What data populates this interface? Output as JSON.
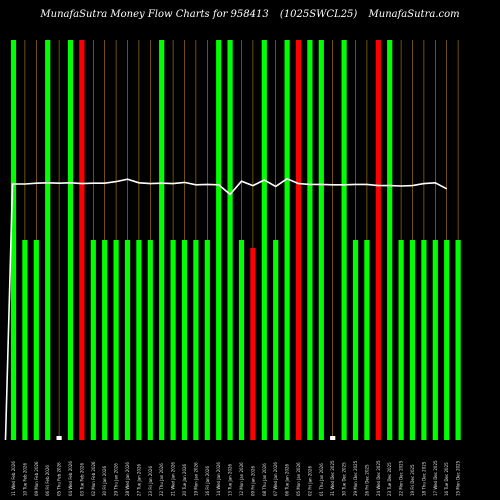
{
  "chart_data": {
    "type": "bar",
    "title": {
      "left": "MunafaSutra Money Flow  Charts for 958413",
      "middle": "(1025SWCL25)",
      "right": "MunafaSutra.com"
    },
    "colors": {
      "background": "#000000",
      "up_bar": "#00ff00",
      "up_bar_light": "#33ff33",
      "down_bar": "#ff0000",
      "neutral_bar": "#ffffff",
      "gridline": "#b8860b",
      "flow_line": "#ffffff"
    },
    "grid": true,
    "ylim": [
      0,
      100
    ],
    "categories": [
      "11 Wed Feb 2026",
      "10 Tue Feb 2026",
      "09 Mon Feb 2026",
      "06 Fri Feb 2026",
      "05 Thu Feb 2026",
      "04 Wed Feb 2026",
      "03 Tue Feb 2026",
      "02 Mon Feb 2026",
      "30 Fri Jan 2026",
      "29 Thu Jan 2026",
      "28 Wed Jan 2026",
      "27 Tue Jan 2026",
      "23 Fri Jan 2026",
      "22 Thu Jan 2026",
      "21 Wed Jan 2026",
      "20 Tue Jan 2026",
      "19 Mon Jan 2026",
      "16 Fri Jan 2026",
      "14 Wed Jan 2026",
      "13 Tue Jan 2026",
      "12 Mon Jan 2026",
      "09 Fri Jan 2026",
      "08 Thu Jan 2026",
      "07 Wed Jan 2026",
      "06 Tue Jan 2026",
      "05 Mon Jan 2026",
      "02 Fri Jan 2026",
      "01 Thu Jan 2026",
      "31 Wed Dec 2025",
      "30 Tue Dec 2025",
      "29 Mon Dec 2025",
      "26 Fri Dec 2025",
      "24 Wed Dec 2025",
      "23 Tue Dec 2025",
      "22 Mon Dec 2025",
      "19 Fri Dec 2025",
      "18 Thu Dec 2025",
      "17 Wed Dec 2025",
      "16 Tue Dec 2025",
      "15 Mon Dec 2025"
    ],
    "bars": [
      {
        "value": 100,
        "color": "up"
      },
      {
        "value": 50,
        "color": "up"
      },
      {
        "value": 50,
        "color": "up"
      },
      {
        "value": 100,
        "color": "up"
      },
      {
        "value": 1,
        "color": "neutral"
      },
      {
        "value": 100,
        "color": "up"
      },
      {
        "value": 100,
        "color": "down"
      },
      {
        "value": 50,
        "color": "up"
      },
      {
        "value": 50,
        "color": "up"
      },
      {
        "value": 50,
        "color": "up"
      },
      {
        "value": 50,
        "color": "up"
      },
      {
        "value": 50,
        "color": "up"
      },
      {
        "value": 50,
        "color": "up"
      },
      {
        "value": 100,
        "color": "up"
      },
      {
        "value": 50,
        "color": "up"
      },
      {
        "value": 50,
        "color": "up"
      },
      {
        "value": 50,
        "color": "up"
      },
      {
        "value": 50,
        "color": "up"
      },
      {
        "value": 100,
        "color": "up"
      },
      {
        "value": 100,
        "color": "up"
      },
      {
        "value": 50,
        "color": "up"
      },
      {
        "value": 48,
        "color": "down"
      },
      {
        "value": 100,
        "color": "up"
      },
      {
        "value": 50,
        "color": "up"
      },
      {
        "value": 100,
        "color": "up"
      },
      {
        "value": 100,
        "color": "down"
      },
      {
        "value": 100,
        "color": "up"
      },
      {
        "value": 100,
        "color": "up"
      },
      {
        "value": 1,
        "color": "neutral"
      },
      {
        "value": 100,
        "color": "up"
      },
      {
        "value": 50,
        "color": "up"
      },
      {
        "value": 50,
        "color": "up"
      },
      {
        "value": 100,
        "color": "down"
      },
      {
        "value": 100,
        "color": "up"
      },
      {
        "value": 50,
        "color": "up"
      },
      {
        "value": 50,
        "color": "up"
      },
      {
        "value": 50,
        "color": "up"
      },
      {
        "value": 50,
        "color": "up"
      },
      {
        "value": 50,
        "color": "up"
      },
      {
        "value": 50,
        "color": "up"
      }
    ],
    "flow_line": [
      0,
      64,
      64,
      64.2,
      64.3,
      64.2,
      64.3,
      64.1,
      64.2,
      64.2,
      64.6,
      65.2,
      64.3,
      64.1,
      64.2,
      64.1,
      64.4,
      63.8,
      63.9,
      63.8,
      61.4,
      64.7,
      63.6,
      65,
      63.4,
      65.3,
      64.1,
      63.9,
      63.9,
      63.8,
      63.8,
      63.9,
      63.9,
      63.6,
      63.6,
      63.5,
      63.6,
      64.1,
      64.3,
      62.8
    ]
  }
}
